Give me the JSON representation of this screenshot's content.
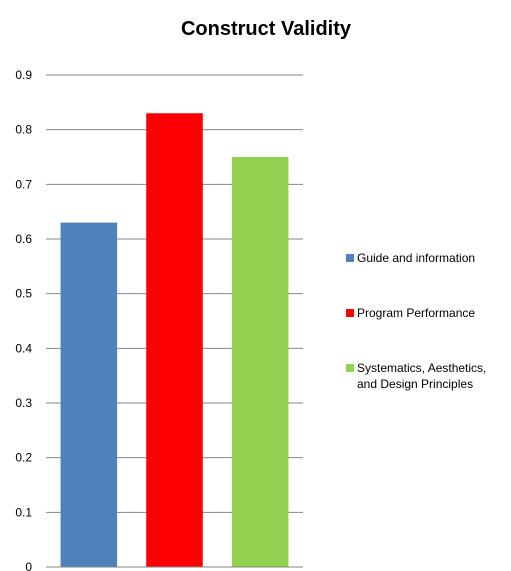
{
  "chart_data": {
    "type": "bar",
    "title": "Construct Validity",
    "xlabel": "",
    "ylabel": "",
    "ylim": [
      0,
      0.9
    ],
    "yticks": [
      "0",
      "0.1",
      "0.2",
      "0.3",
      "0.4",
      "0.5",
      "0.6",
      "0.7",
      "0.8",
      "0.9"
    ],
    "grid": true,
    "legend_position": "right",
    "series": [
      {
        "name": "Guide and information",
        "legend_lines": [
          "Guide and information"
        ],
        "value": 0.63,
        "color": "#4f81bd"
      },
      {
        "name": "Program Performance",
        "legend_lines": [
          "Program Performance"
        ],
        "value": 0.83,
        "color": "#ff0000"
      },
      {
        "name": "Systematics, Aesthetics, and Design Principles",
        "legend_lines": [
          "Systematics, Aesthetics,",
          "and Design Principles"
        ],
        "value": 0.75,
        "color": "#92d050"
      }
    ]
  }
}
